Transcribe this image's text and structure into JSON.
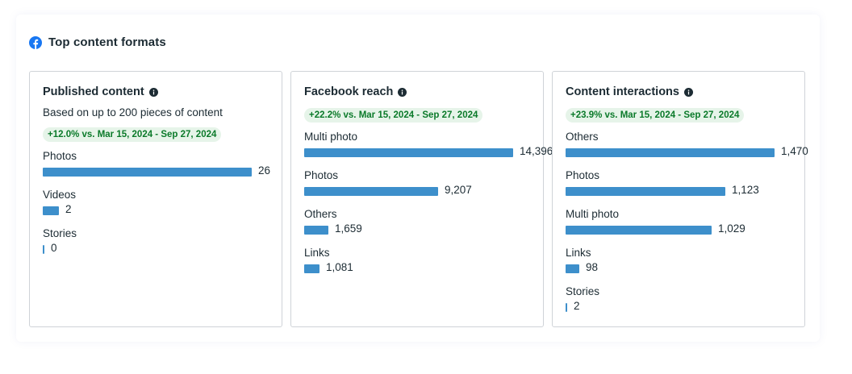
{
  "header": {
    "title": "Top content formats",
    "icon": "facebook-icon",
    "icon_color": "#1877f2"
  },
  "colors": {
    "bar": "#3d8fcb",
    "badge_bg": "#e6f4e9",
    "badge_text": "#0b7a2a"
  },
  "cards": [
    {
      "title": "Published content",
      "subtitle": "Based on up to 200 pieces of content",
      "badge": "+12.0% vs. Mar 15, 2024 - Sep 27, 2024",
      "metrics": [
        {
          "label": "Photos",
          "value": 26,
          "display": "26"
        },
        {
          "label": "Videos",
          "value": 2,
          "display": "2"
        },
        {
          "label": "Stories",
          "value": 0,
          "display": "0"
        }
      ]
    },
    {
      "title": "Facebook reach",
      "subtitle": null,
      "badge": "+22.2% vs. Mar 15, 2024 - Sep 27, 2024",
      "metrics": [
        {
          "label": "Multi photo",
          "value": 14396,
          "display": "14,396"
        },
        {
          "label": "Photos",
          "value": 9207,
          "display": "9,207"
        },
        {
          "label": "Others",
          "value": 1659,
          "display": "1,659"
        },
        {
          "label": "Links",
          "value": 1081,
          "display": "1,081"
        }
      ]
    },
    {
      "title": "Content interactions",
      "subtitle": null,
      "badge": "+23.9% vs. Mar 15, 2024 - Sep 27, 2024",
      "metrics": [
        {
          "label": "Others",
          "value": 1470,
          "display": "1,470"
        },
        {
          "label": "Photos",
          "value": 1123,
          "display": "1,123"
        },
        {
          "label": "Multi photo",
          "value": 1029,
          "display": "1,029"
        },
        {
          "label": "Links",
          "value": 98,
          "display": "98"
        },
        {
          "label": "Stories",
          "value": 2,
          "display": "2"
        }
      ]
    }
  ]
}
